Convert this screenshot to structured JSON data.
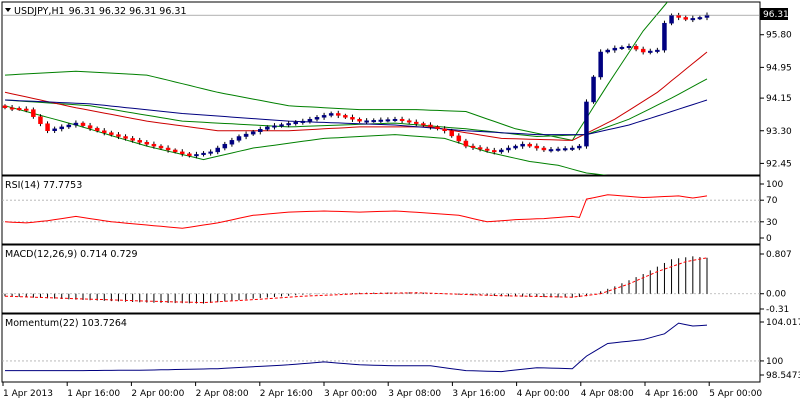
{
  "chart_data": [
    {
      "type": "candlestick",
      "symbol": "USDJPY,H1",
      "ohlc_header": "96.31 96.32 96.31 96.31",
      "current_price": "96.31",
      "ylim": [
        92.2,
        96.6
      ],
      "y_ticks": [
        "95.80",
        "94.95",
        "94.15",
        "93.30",
        "92.45"
      ],
      "x_ticks": [
        "1 Apr 2013",
        "1 Apr 16:00",
        "2 Apr 00:00",
        "2 Apr 08:00",
        "2 Apr 16:00",
        "3 Apr 00:00",
        "3 Apr 08:00",
        "3 Apr 16:00",
        "4 Apr 00:00",
        "4 Apr 08:00",
        "4 Apr 16:00",
        "5 Apr 00:00"
      ],
      "close_anchors": [
        [
          0,
          93.9
        ],
        [
          3,
          93.85
        ],
        [
          6,
          93.3
        ],
        [
          10,
          93.5
        ],
        [
          13,
          93.3
        ],
        [
          18,
          93.05
        ],
        [
          22,
          92.85
        ],
        [
          26,
          92.65
        ],
        [
          29,
          92.75
        ],
        [
          33,
          93.15
        ],
        [
          37,
          93.4
        ],
        [
          42,
          93.55
        ],
        [
          46,
          93.75
        ],
        [
          50,
          93.55
        ],
        [
          55,
          93.6
        ],
        [
          59,
          93.45
        ],
        [
          62,
          93.3
        ],
        [
          65,
          92.9
        ],
        [
          69,
          92.75
        ],
        [
          73,
          92.95
        ],
        [
          76,
          92.8
        ],
        [
          80,
          92.85
        ],
        [
          81,
          92.9
        ],
        [
          82,
          94.05
        ],
        [
          84,
          95.35
        ],
        [
          86,
          95.45
        ],
        [
          88,
          95.5
        ],
        [
          90,
          95.35
        ],
        [
          92,
          95.4
        ],
        [
          93,
          96.1
        ],
        [
          94,
          96.3
        ],
        [
          96,
          96.2
        ],
        [
          98,
          96.25
        ],
        [
          99,
          96.31
        ]
      ],
      "bollinger_upper_anchors": [
        [
          0,
          94.75
        ],
        [
          10,
          94.85
        ],
        [
          20,
          94.75
        ],
        [
          30,
          94.3
        ],
        [
          40,
          93.95
        ],
        [
          50,
          93.85
        ],
        [
          58,
          93.85
        ],
        [
          65,
          93.8
        ],
        [
          72,
          93.35
        ],
        [
          80,
          93.05
        ],
        [
          85,
          94.5
        ],
        [
          90,
          95.9
        ],
        [
          95,
          97.0
        ]
      ],
      "bollinger_lower_anchors": [
        [
          0,
          93.95
        ],
        [
          10,
          93.45
        ],
        [
          20,
          92.9
        ],
        [
          28,
          92.55
        ],
        [
          35,
          92.85
        ],
        [
          45,
          93.1
        ],
        [
          55,
          93.2
        ],
        [
          62,
          93.1
        ],
        [
          68,
          92.75
        ],
        [
          74,
          92.5
        ],
        [
          78,
          92.4
        ],
        [
          82,
          92.2
        ]
      ],
      "ma_red_anchors": [
        [
          0,
          94.3
        ],
        [
          10,
          93.9
        ],
        [
          20,
          93.55
        ],
        [
          30,
          93.3
        ],
        [
          40,
          93.3
        ],
        [
          50,
          93.4
        ],
        [
          60,
          93.4
        ],
        [
          70,
          93.1
        ],
        [
          80,
          93.05
        ],
        [
          86,
          93.6
        ],
        [
          92,
          94.3
        ],
        [
          99,
          95.35
        ]
      ],
      "ma_green_anchors": [
        [
          0,
          94.1
        ],
        [
          12,
          93.95
        ],
        [
          25,
          93.55
        ],
        [
          40,
          93.4
        ],
        [
          55,
          93.5
        ],
        [
          65,
          93.35
        ],
        [
          75,
          93.15
        ],
        [
          82,
          93.2
        ],
        [
          88,
          93.6
        ],
        [
          94,
          94.15
        ],
        [
          99,
          94.65
        ]
      ],
      "ma_blue_anchors": [
        [
          0,
          94.1
        ],
        [
          12,
          94.0
        ],
        [
          25,
          93.75
        ],
        [
          40,
          93.55
        ],
        [
          55,
          93.45
        ],
        [
          65,
          93.3
        ],
        [
          75,
          93.2
        ],
        [
          82,
          93.2
        ],
        [
          88,
          93.45
        ],
        [
          94,
          93.8
        ],
        [
          99,
          94.1
        ]
      ],
      "band_color": "#008000",
      "up_color": "#000080",
      "down_color": "#ff0000"
    },
    {
      "type": "line",
      "title": "RSI(14) 77.7753",
      "ylim": [
        0,
        100
      ],
      "y_ticks": [
        "100",
        "70",
        "30",
        "0"
      ],
      "level_lines": [
        70,
        30
      ],
      "values_anchors": [
        [
          0,
          30
        ],
        [
          3,
          28
        ],
        [
          6,
          32
        ],
        [
          10,
          40
        ],
        [
          15,
          30
        ],
        [
          20,
          24
        ],
        [
          25,
          18
        ],
        [
          30,
          28
        ],
        [
          35,
          42
        ],
        [
          40,
          48
        ],
        [
          45,
          50
        ],
        [
          50,
          48
        ],
        [
          55,
          50
        ],
        [
          60,
          46
        ],
        [
          64,
          42
        ],
        [
          68,
          30
        ],
        [
          72,
          34
        ],
        [
          76,
          36
        ],
        [
          80,
          40
        ],
        [
          81,
          38
        ],
        [
          82,
          72
        ],
        [
          85,
          80
        ],
        [
          90,
          75
        ],
        [
          95,
          78
        ],
        [
          97,
          74
        ],
        [
          99,
          78
        ]
      ],
      "color": "#ff0000"
    },
    {
      "type": "bar",
      "title": "MACD(12,26,9) 0.714 0.729",
      "ylim": [
        -0.31,
        0.807
      ],
      "y_ticks": [
        "0.807",
        "0.00",
        "-0.31"
      ],
      "hist_anchors": [
        [
          0,
          -0.05
        ],
        [
          10,
          -0.12
        ],
        [
          20,
          -0.18
        ],
        [
          28,
          -0.2
        ],
        [
          35,
          -0.1
        ],
        [
          42,
          -0.02
        ],
        [
          50,
          0.02
        ],
        [
          58,
          0.03
        ],
        [
          64,
          -0.02
        ],
        [
          70,
          -0.05
        ],
        [
          80,
          -0.08
        ],
        [
          82,
          -0.05
        ],
        [
          86,
          0.15
        ],
        [
          90,
          0.4
        ],
        [
          94,
          0.7
        ],
        [
          97,
          0.76
        ],
        [
          99,
          0.73
        ]
      ],
      "signal_anchors": [
        [
          0,
          -0.05
        ],
        [
          10,
          -0.1
        ],
        [
          20,
          -0.15
        ],
        [
          28,
          -0.18
        ],
        [
          35,
          -0.12
        ],
        [
          42,
          -0.05
        ],
        [
          50,
          0.0
        ],
        [
          58,
          0.02
        ],
        [
          64,
          -0.01
        ],
        [
          70,
          -0.04
        ],
        [
          80,
          -0.07
        ],
        [
          84,
          0.0
        ],
        [
          88,
          0.2
        ],
        [
          92,
          0.45
        ],
        [
          96,
          0.65
        ],
        [
          99,
          0.73
        ]
      ],
      "hist_color": "#000000",
      "signal_color": "#ff0000"
    },
    {
      "type": "line",
      "title": "Momentum(22) 103.7264",
      "ylim": [
        98.5473,
        104.0178
      ],
      "y_ticks": [
        "104.0178",
        "100",
        "98.5473"
      ],
      "level_lines": [
        100
      ],
      "values_anchors": [
        [
          0,
          99.0
        ],
        [
          10,
          99.0
        ],
        [
          20,
          99.05
        ],
        [
          30,
          99.2
        ],
        [
          40,
          99.6
        ],
        [
          45,
          99.9
        ],
        [
          50,
          99.6
        ],
        [
          55,
          99.5
        ],
        [
          60,
          99.5
        ],
        [
          65,
          99.0
        ],
        [
          70,
          98.9
        ],
        [
          75,
          99.3
        ],
        [
          80,
          99.2
        ],
        [
          82,
          100.5
        ],
        [
          85,
          101.8
        ],
        [
          90,
          102.2
        ],
        [
          93,
          102.8
        ],
        [
          95,
          103.9
        ],
        [
          97,
          103.6
        ],
        [
          99,
          103.7
        ]
      ],
      "color": "#000080"
    }
  ]
}
